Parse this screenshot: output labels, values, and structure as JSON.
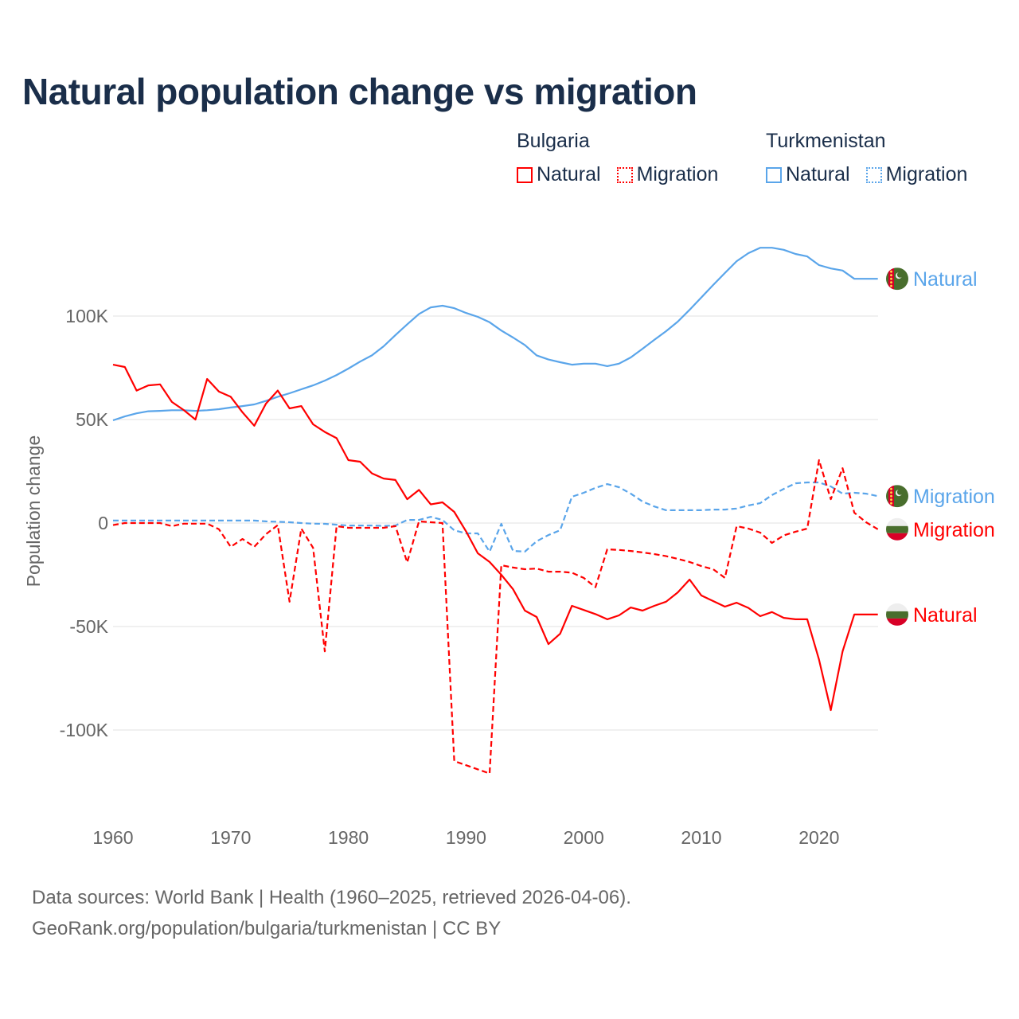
{
  "title": "Natural population change vs migration",
  "legend": {
    "groups": [
      {
        "name": "Bulgaria",
        "items": [
          "Natural",
          "Migration"
        ],
        "color": "#ff0000"
      },
      {
        "name": "Turkmenistan",
        "items": [
          "Natural",
          "Migration"
        ],
        "color": "#5aa5ea"
      }
    ]
  },
  "footer": {
    "line1": "Data sources: World Bank | Health (1960–2025, retrieved 2026-04-06).",
    "line2": "GeoRank.org/population/bulgaria/turkmenistan | CC BY"
  },
  "chart_data": {
    "type": "line",
    "title": "Natural population change vs migration",
    "xlabel": "",
    "ylabel": "Population change",
    "xlim": [
      1960,
      2025
    ],
    "ylim": [
      -140000,
      140000
    ],
    "x_ticks": [
      1960,
      1970,
      1980,
      1990,
      2000,
      2010,
      2020
    ],
    "y_ticks": [
      {
        "value": 100000,
        "label": "100K"
      },
      {
        "value": 50000,
        "label": "50K"
      },
      {
        "value": 0,
        "label": "0"
      },
      {
        "value": -50000,
        "label": "-50K"
      },
      {
        "value": -100000,
        "label": "-100K"
      }
    ],
    "grid": true,
    "legend_position": "top-right",
    "x_start": 1960,
    "series": [
      {
        "name": "Turkmenistan Natural",
        "end_label": "Natural",
        "color": "#5aa5ea",
        "dash": false,
        "flag": "turkmenistan",
        "values_k": [
          49.6,
          51.5,
          53,
          54,
          54.2,
          54.5,
          54.5,
          54.2,
          54.5,
          55,
          55.8,
          56.5,
          57.3,
          59,
          61,
          62.7,
          64.6,
          66.5,
          68.8,
          71.5,
          74.6,
          78,
          81,
          85.4,
          90.8,
          96,
          101,
          104.2,
          105,
          103.8,
          101.5,
          99.6,
          97,
          93,
          89.6,
          86,
          81,
          79,
          77.7,
          76.5,
          77,
          77,
          75.8,
          77,
          80,
          84.2,
          88.5,
          92.7,
          97.3,
          103,
          109,
          115,
          120.8,
          126.5,
          130.4,
          133,
          133,
          132,
          130,
          128.8,
          124.6,
          123,
          122,
          118,
          118,
          118
        ]
      },
      {
        "name": "Turkmenistan Migration",
        "end_label": "Migration",
        "color": "#5aa5ea",
        "dash": true,
        "flag": "turkmenistan",
        "values_k": [
          1.2,
          1.2,
          1.2,
          1.2,
          1.2,
          1.2,
          1.2,
          1.2,
          1.2,
          1.2,
          1.2,
          1.2,
          1.2,
          0.8,
          0.6,
          0.4,
          0,
          -0.3,
          -0.4,
          -0.8,
          -1.2,
          -1.2,
          -1.2,
          -1.4,
          -1.2,
          1.5,
          1.5,
          3,
          1.5,
          -3.5,
          -5,
          -5,
          -13.8,
          -0.4,
          -13.5,
          -13.8,
          -8.8,
          -5.8,
          -3.5,
          12.7,
          14.6,
          17,
          18.8,
          17.3,
          14.2,
          10.4,
          8,
          6.2,
          6.2,
          6.2,
          6.2,
          6.5,
          6.5,
          7,
          8.5,
          9.6,
          13.5,
          16.5,
          19.2,
          19.6,
          19.6,
          17.7,
          14.2,
          14.6,
          14.2,
          13
        ]
      },
      {
        "name": "Bulgaria Migration",
        "end_label": "Migration",
        "color": "#ff0000",
        "dash": true,
        "flag": "bulgaria",
        "values_k": [
          -1,
          0,
          0,
          0,
          0,
          -1.5,
          -0.3,
          -0.3,
          -0.3,
          -3,
          -11.5,
          -7.7,
          -11.5,
          -5.4,
          -1,
          -38,
          -2.7,
          -12,
          -62,
          -1.5,
          -2.3,
          -2.3,
          -2.3,
          -2.3,
          -1.5,
          -19,
          0.8,
          0.4,
          0,
          -115,
          -117,
          -119,
          -121,
          -20.4,
          -21.5,
          -22.3,
          -22,
          -23.5,
          -23.5,
          -24,
          -26.5,
          -31,
          -12.7,
          -13,
          -13.5,
          -14.2,
          -15,
          -16,
          -17.3,
          -18.8,
          -20.8,
          -22.3,
          -26.5,
          -1.5,
          -2.7,
          -4.6,
          -9.6,
          -6,
          -4.2,
          -2.7,
          30.4,
          11.5,
          26.5,
          5,
          0.4,
          -3
        ]
      },
      {
        "name": "Bulgaria Natural",
        "end_label": "Natural",
        "color": "#ff0000",
        "dash": false,
        "flag": "bulgaria",
        "values_k": [
          76.5,
          75.4,
          64,
          66.5,
          67,
          58.5,
          54.6,
          50,
          69.6,
          63.5,
          61,
          53.5,
          47,
          57.7,
          64,
          55.4,
          56.5,
          47.7,
          44,
          41,
          30.4,
          29.6,
          24,
          21.5,
          20.8,
          11.5,
          16,
          9,
          10,
          5.4,
          -4,
          -14.6,
          -18.8,
          -25,
          -32,
          -42.3,
          -45.4,
          -58.5,
          -53.5,
          -40,
          -42,
          -44,
          -46.5,
          -44.6,
          -40.8,
          -42.3,
          -40,
          -38,
          -33.5,
          -27.3,
          -35,
          -37.7,
          -40.4,
          -38.5,
          -41,
          -45,
          -43,
          -45.8,
          -46.5,
          -46.5,
          -66,
          -90.4,
          -62,
          -44.2,
          -44.2,
          -44.2
        ]
      }
    ]
  }
}
